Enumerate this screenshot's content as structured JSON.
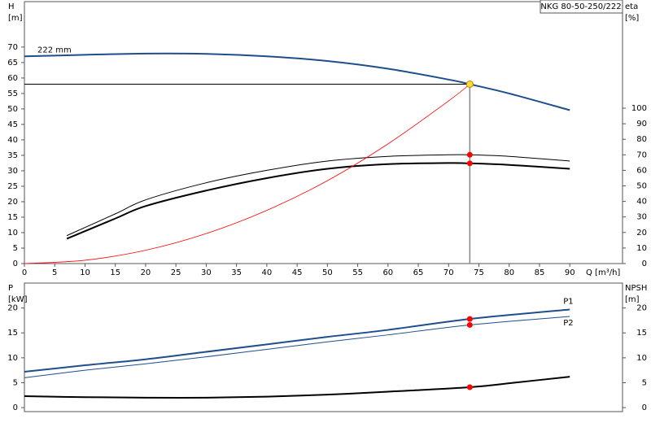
{
  "chart_data": [
    {
      "type": "line",
      "title": "NKG 80-50-250/222",
      "xlabel": "Q [m³/h]",
      "ylabel": [
        "H",
        "[m]"
      ],
      "y2label": [
        "eta",
        "[%]"
      ],
      "annotation": "222 mm",
      "xlim": [
        0,
        98.7
      ],
      "xticks": [
        0,
        5,
        10,
        15,
        20,
        25,
        30,
        35,
        40,
        45,
        50,
        55,
        60,
        65,
        70,
        75,
        80,
        85,
        90
      ],
      "ylim": [
        0,
        84.7
      ],
      "yticks": [
        0,
        5,
        10,
        15,
        20,
        25,
        30,
        35,
        40,
        45,
        50,
        55,
        60,
        65,
        70
      ],
      "y2lim": [
        0,
        168.6
      ],
      "y2ticks": [
        0,
        10,
        20,
        30,
        40,
        50,
        60,
        70,
        80,
        90,
        100
      ],
      "series": [
        {
          "color": "#1f4e8c",
          "width": 2,
          "x": [
            0,
            10,
            20,
            30,
            40,
            50,
            60,
            70,
            73.5,
            80,
            90
          ],
          "values": [
            67,
            67.5,
            67.9,
            67.8,
            67,
            65.5,
            63,
            59.5,
            58,
            55,
            49.6
          ]
        },
        {
          "color": "#000000",
          "width": 1,
          "axis": "y2",
          "x": [
            7,
            15,
            20,
            30,
            40,
            50,
            60,
            70,
            73.5,
            80,
            90
          ],
          "values": [
            18,
            32,
            41,
            52,
            60,
            66,
            69,
            70,
            70,
            69,
            66
          ]
        },
        {
          "color": "#000000",
          "width": 2,
          "axis": "y2",
          "x": [
            7,
            15,
            20,
            30,
            40,
            50,
            60,
            70,
            73.5,
            80,
            90
          ],
          "values": [
            16,
            29,
            37,
            47,
            55,
            61,
            64,
            64.7,
            64.5,
            63.5,
            61
          ]
        },
        {
          "color": "#ff0000",
          "width": 0.8,
          "x": [
            0,
            10,
            20,
            30,
            40,
            50,
            60,
            70,
            73.5
          ],
          "values": [
            0,
            1.07,
            4.3,
            9.7,
            17.2,
            26.8,
            38.7,
            52.6,
            58
          ]
        }
      ],
      "duty_point": {
        "x": 73.5,
        "y": 58,
        "color": "#ffdd33"
      },
      "markers": [
        {
          "x": 73.5,
          "y": 70,
          "axis": "y2",
          "color": "#ff0000"
        },
        {
          "x": 73.5,
          "y": 64.5,
          "axis": "y2",
          "color": "#ff0000"
        }
      ]
    },
    {
      "type": "line",
      "ylabel": [
        "P",
        "[kW]"
      ],
      "y2label": [
        "NPSH",
        "[m]"
      ],
      "xlim": [
        0,
        98.7
      ],
      "ylim": [
        -0.8,
        25
      ],
      "yticks": [
        0,
        5,
        10,
        15,
        20
      ],
      "y2lim": [
        -0.8,
        25
      ],
      "y2ticks": [
        0,
        5,
        10,
        15,
        20
      ],
      "series": [
        {
          "name": "P1",
          "color": "#1f4e8c",
          "width": 2,
          "x": [
            0,
            10,
            20,
            30,
            40,
            50,
            60,
            73.5,
            90
          ],
          "values": [
            7.2,
            8.5,
            9.7,
            11.2,
            12.7,
            14.2,
            15.6,
            17.8,
            19.7
          ]
        },
        {
          "name": "P2",
          "color": "#1f4e8c",
          "width": 1,
          "x": [
            0,
            10,
            20,
            30,
            40,
            50,
            60,
            73.5,
            90
          ],
          "values": [
            6,
            7.5,
            8.8,
            10.2,
            11.7,
            13.2,
            14.6,
            16.6,
            18.3
          ]
        },
        {
          "color": "#000000",
          "width": 2,
          "axis": "y2",
          "x": [
            0,
            10,
            20,
            30,
            40,
            50,
            60,
            73.5,
            80,
            90
          ],
          "values": [
            2.3,
            2.1,
            2,
            2,
            2.2,
            2.6,
            3.2,
            4.1,
            4.9,
            6.2
          ]
        }
      ],
      "markers": [
        {
          "x": 73.5,
          "y": 17.8,
          "color": "#ff0000"
        },
        {
          "x": 73.5,
          "y": 16.6,
          "color": "#ff0000"
        },
        {
          "x": 73.5,
          "y": 4.1,
          "axis": "y2",
          "color": "#ff0000"
        }
      ]
    }
  ]
}
